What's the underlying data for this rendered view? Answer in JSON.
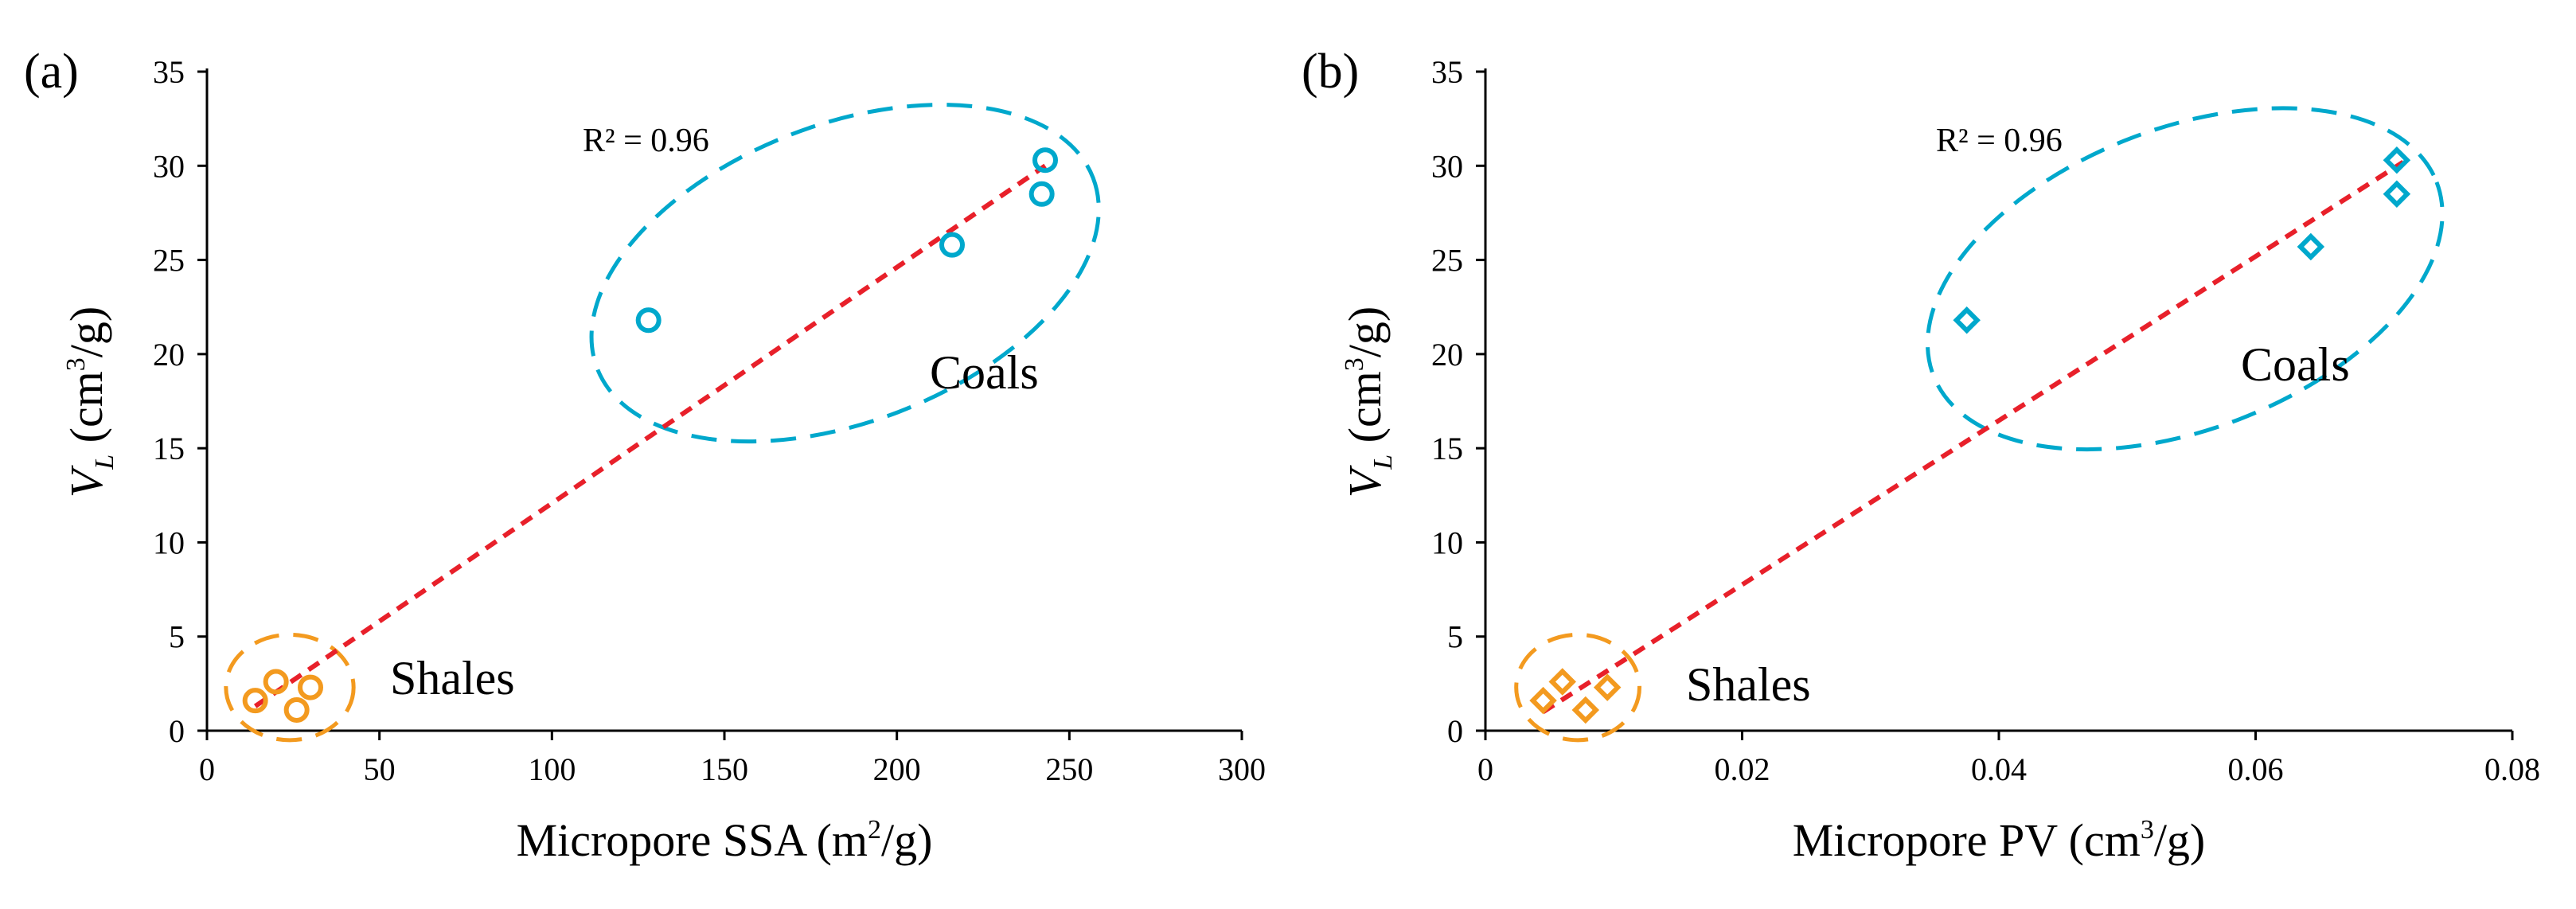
{
  "colors": {
    "coal": "#00A8CC",
    "shale": "#F39A1F",
    "trend": "#E8202A",
    "axis": "#000000"
  },
  "chart_data": [
    {
      "type": "scatter",
      "panel_label": "(a)",
      "xlabel": "Micropore SSA (m²/g)",
      "xlabel_main": "Micropore SSA (m",
      "xlabel_sup": "2",
      "xlabel_tail": "/g)",
      "ylabel": "V_L (cm³/g)",
      "ylabel_var": "V",
      "ylabel_sub": "L",
      "ylabel_unit_main": " (cm",
      "ylabel_unit_sup": "3",
      "ylabel_unit_tail": "/g)",
      "xlim": [
        0,
        300
      ],
      "ylim": [
        0,
        35
      ],
      "xticks": [
        0,
        50,
        100,
        150,
        200,
        250,
        300
      ],
      "xtick_labels": [
        "0",
        "50",
        "100",
        "150",
        "200",
        "250",
        "300"
      ],
      "yticks": [
        0,
        5,
        10,
        15,
        20,
        25,
        30,
        35
      ],
      "ytick_labels": [
        "0",
        "5",
        "10",
        "15",
        "20",
        "25",
        "30",
        "35"
      ],
      "marker": "circle",
      "series": [
        {
          "name": "Coals",
          "color": "#00A8CC",
          "x": [
            128,
            216,
            242,
            243
          ],
          "y": [
            21.8,
            25.8,
            28.5,
            30.3
          ]
        },
        {
          "name": "Shales",
          "color": "#F39A1F",
          "x": [
            14,
            20,
            26,
            30
          ],
          "y": [
            1.6,
            2.6,
            1.1,
            2.3
          ]
        }
      ],
      "trendline": {
        "x": [
          14,
          243
        ],
        "y": [
          1.3,
          30.0
        ]
      },
      "r_squared_label": "R² = 0.96",
      "group_labels": [
        "Coals",
        "Shales"
      ],
      "coal_group_ellipse": {
        "center": [
          185,
          24.3
        ],
        "x_radius": 77,
        "y_radius": 7.9,
        "angle_deg": -21
      },
      "shale_group_ellipse": {
        "center": [
          24,
          2.3
        ],
        "x_radius": 18.5,
        "y_radius": 2.8,
        "angle_deg": 0
      }
    },
    {
      "type": "scatter",
      "panel_label": "(b)",
      "xlabel": "Micropore PV (cm³/g)",
      "xlabel_main": "Micropore PV (cm",
      "xlabel_sup": "3",
      "xlabel_tail": "/g)",
      "ylabel": "V_L (cm³/g)",
      "ylabel_var": "V",
      "ylabel_sub": "L",
      "ylabel_unit_main": " (cm",
      "ylabel_unit_sup": "3",
      "ylabel_unit_tail": "/g)",
      "xlim": [
        0,
        0.08
      ],
      "ylim": [
        0,
        35
      ],
      "xticks": [
        0,
        0.02,
        0.04,
        0.06,
        0.08
      ],
      "xtick_labels": [
        "0",
        "0.02",
        "0.04",
        "0.06",
        "0.08"
      ],
      "yticks": [
        0,
        5,
        10,
        15,
        20,
        25,
        30,
        35
      ],
      "ytick_labels": [
        "0",
        "5",
        "10",
        "15",
        "20",
        "25",
        "30",
        "35"
      ],
      "marker": "diamond",
      "series": [
        {
          "name": "Coals",
          "color": "#00A8CC",
          "x": [
            0.0375,
            0.0643,
            0.071,
            0.071
          ],
          "y": [
            21.8,
            25.7,
            28.5,
            30.3
          ]
        },
        {
          "name": "Shales",
          "color": "#F39A1F",
          "x": [
            0.0045,
            0.006,
            0.0078,
            0.0095
          ],
          "y": [
            1.6,
            2.6,
            1.1,
            2.3
          ]
        }
      ],
      "trendline": {
        "x": [
          0.0045,
          0.0715
        ],
        "y": [
          1.0,
          30.2
        ]
      },
      "r_squared_label": "R² = 0.96",
      "group_labels": [
        "Coals",
        "Shales"
      ],
      "coal_group_ellipse": {
        "center": [
          0.0545,
          24.0
        ],
        "x_radius": 0.021,
        "y_radius": 8.0,
        "angle_deg": -21
      },
      "shale_group_ellipse": {
        "center": [
          0.0072,
          2.3
        ],
        "x_radius": 0.0048,
        "y_radius": 2.8,
        "angle_deg": 0
      }
    }
  ]
}
